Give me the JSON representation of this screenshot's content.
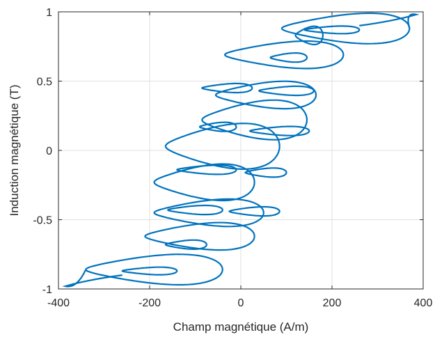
{
  "chart_data": {
    "type": "line",
    "title": "",
    "xlabel": "Champ magnétique (A/m)",
    "ylabel": "Induction magnétique (T)",
    "xlim": [
      -400,
      400
    ],
    "ylim": [
      -1,
      1
    ],
    "xticks": [
      -400,
      -200,
      0,
      200,
      400
    ],
    "yticks": [
      -1,
      -0.5,
      0,
      0.5,
      1
    ],
    "xtick_labels": [
      "-400",
      "-200",
      "0",
      "200",
      "400"
    ],
    "ytick_labels": [
      "-1",
      "-0.5",
      "0",
      "0.5",
      "1"
    ],
    "grid": true,
    "color": "#0072BD",
    "series": [
      {
        "loops": [
          {
            "h_center": 230,
            "b_center": 0.88,
            "h_half": 140,
            "b_half": 0.1
          },
          {
            "h_center": 150,
            "b_center": 0.83,
            "h_half": 30,
            "b_half": 0.06
          },
          {
            "h_center": 95,
            "b_center": 0.69,
            "h_half": 130,
            "b_half": 0.09
          },
          {
            "h_center": 55,
            "b_center": 0.4,
            "h_half": 110,
            "b_half": 0.09
          },
          {
            "h_center": 30,
            "b_center": 0.22,
            "h_half": 115,
            "b_half": 0.13
          },
          {
            "h_center": -40,
            "b_center": 0.03,
            "h_half": 125,
            "b_half": 0.15
          },
          {
            "h_center": -80,
            "b_center": -0.23,
            "h_half": 110,
            "b_half": 0.12
          },
          {
            "h_center": -70,
            "b_center": -0.45,
            "h_half": 120,
            "b_half": 0.09
          },
          {
            "h_center": -90,
            "b_center": -0.62,
            "h_half": 120,
            "b_half": 0.09
          },
          {
            "h_center": -190,
            "b_center": -0.86,
            "h_half": 150,
            "b_half": 0.1
          }
        ],
        "inner_loops": [
          {
            "h_center": 200,
            "b_center": 0.87,
            "h_half": 60,
            "b_half": 0.025
          },
          {
            "h_center": 105,
            "b_center": 0.67,
            "h_half": 40,
            "b_half": 0.03
          },
          {
            "h_center": -30,
            "b_center": 0.45,
            "h_half": 55,
            "b_half": 0.03
          },
          {
            "h_center": 100,
            "b_center": 0.43,
            "h_half": 60,
            "b_half": 0.03
          },
          {
            "h_center": -50,
            "b_center": 0.17,
            "h_half": 40,
            "b_half": 0.03
          },
          {
            "h_center": 85,
            "b_center": 0.14,
            "h_half": 65,
            "b_half": 0.03
          },
          {
            "h_center": -75,
            "b_center": -0.14,
            "h_half": 65,
            "b_half": 0.03
          },
          {
            "h_center": 55,
            "b_center": -0.16,
            "h_half": 45,
            "b_half": 0.03
          },
          {
            "h_center": -100,
            "b_center": -0.43,
            "h_half": 60,
            "b_half": 0.03
          },
          {
            "h_center": 30,
            "b_center": -0.44,
            "h_half": 55,
            "b_half": 0.03
          },
          {
            "h_center": -120,
            "b_center": -0.68,
            "h_half": 45,
            "b_half": 0.03
          },
          {
            "h_center": -200,
            "b_center": -0.87,
            "h_half": 60,
            "b_half": 0.025
          }
        ],
        "peaks": [
          [
            385,
            0.98
          ],
          [
            -385,
            -0.98
          ]
        ]
      }
    ]
  }
}
